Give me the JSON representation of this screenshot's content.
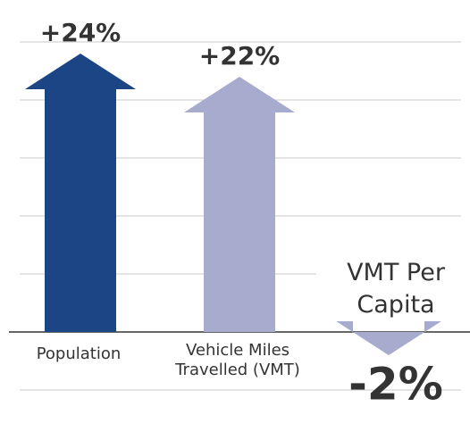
{
  "chart_data": {
    "type": "bar",
    "categories": [
      "Population",
      "Vehicle Miles Travelled (VMT)",
      "VMT Per Capita"
    ],
    "values": [
      24,
      22,
      -2
    ],
    "value_labels": [
      "+24%",
      "+22%",
      "-2%"
    ],
    "colors": [
      "#1b4584",
      "#a7abcd",
      "#a7abcd"
    ],
    "ylim": [
      -7,
      28
    ],
    "yticks": [
      -5,
      5,
      10,
      15,
      20,
      25
    ],
    "grid": true
  }
}
